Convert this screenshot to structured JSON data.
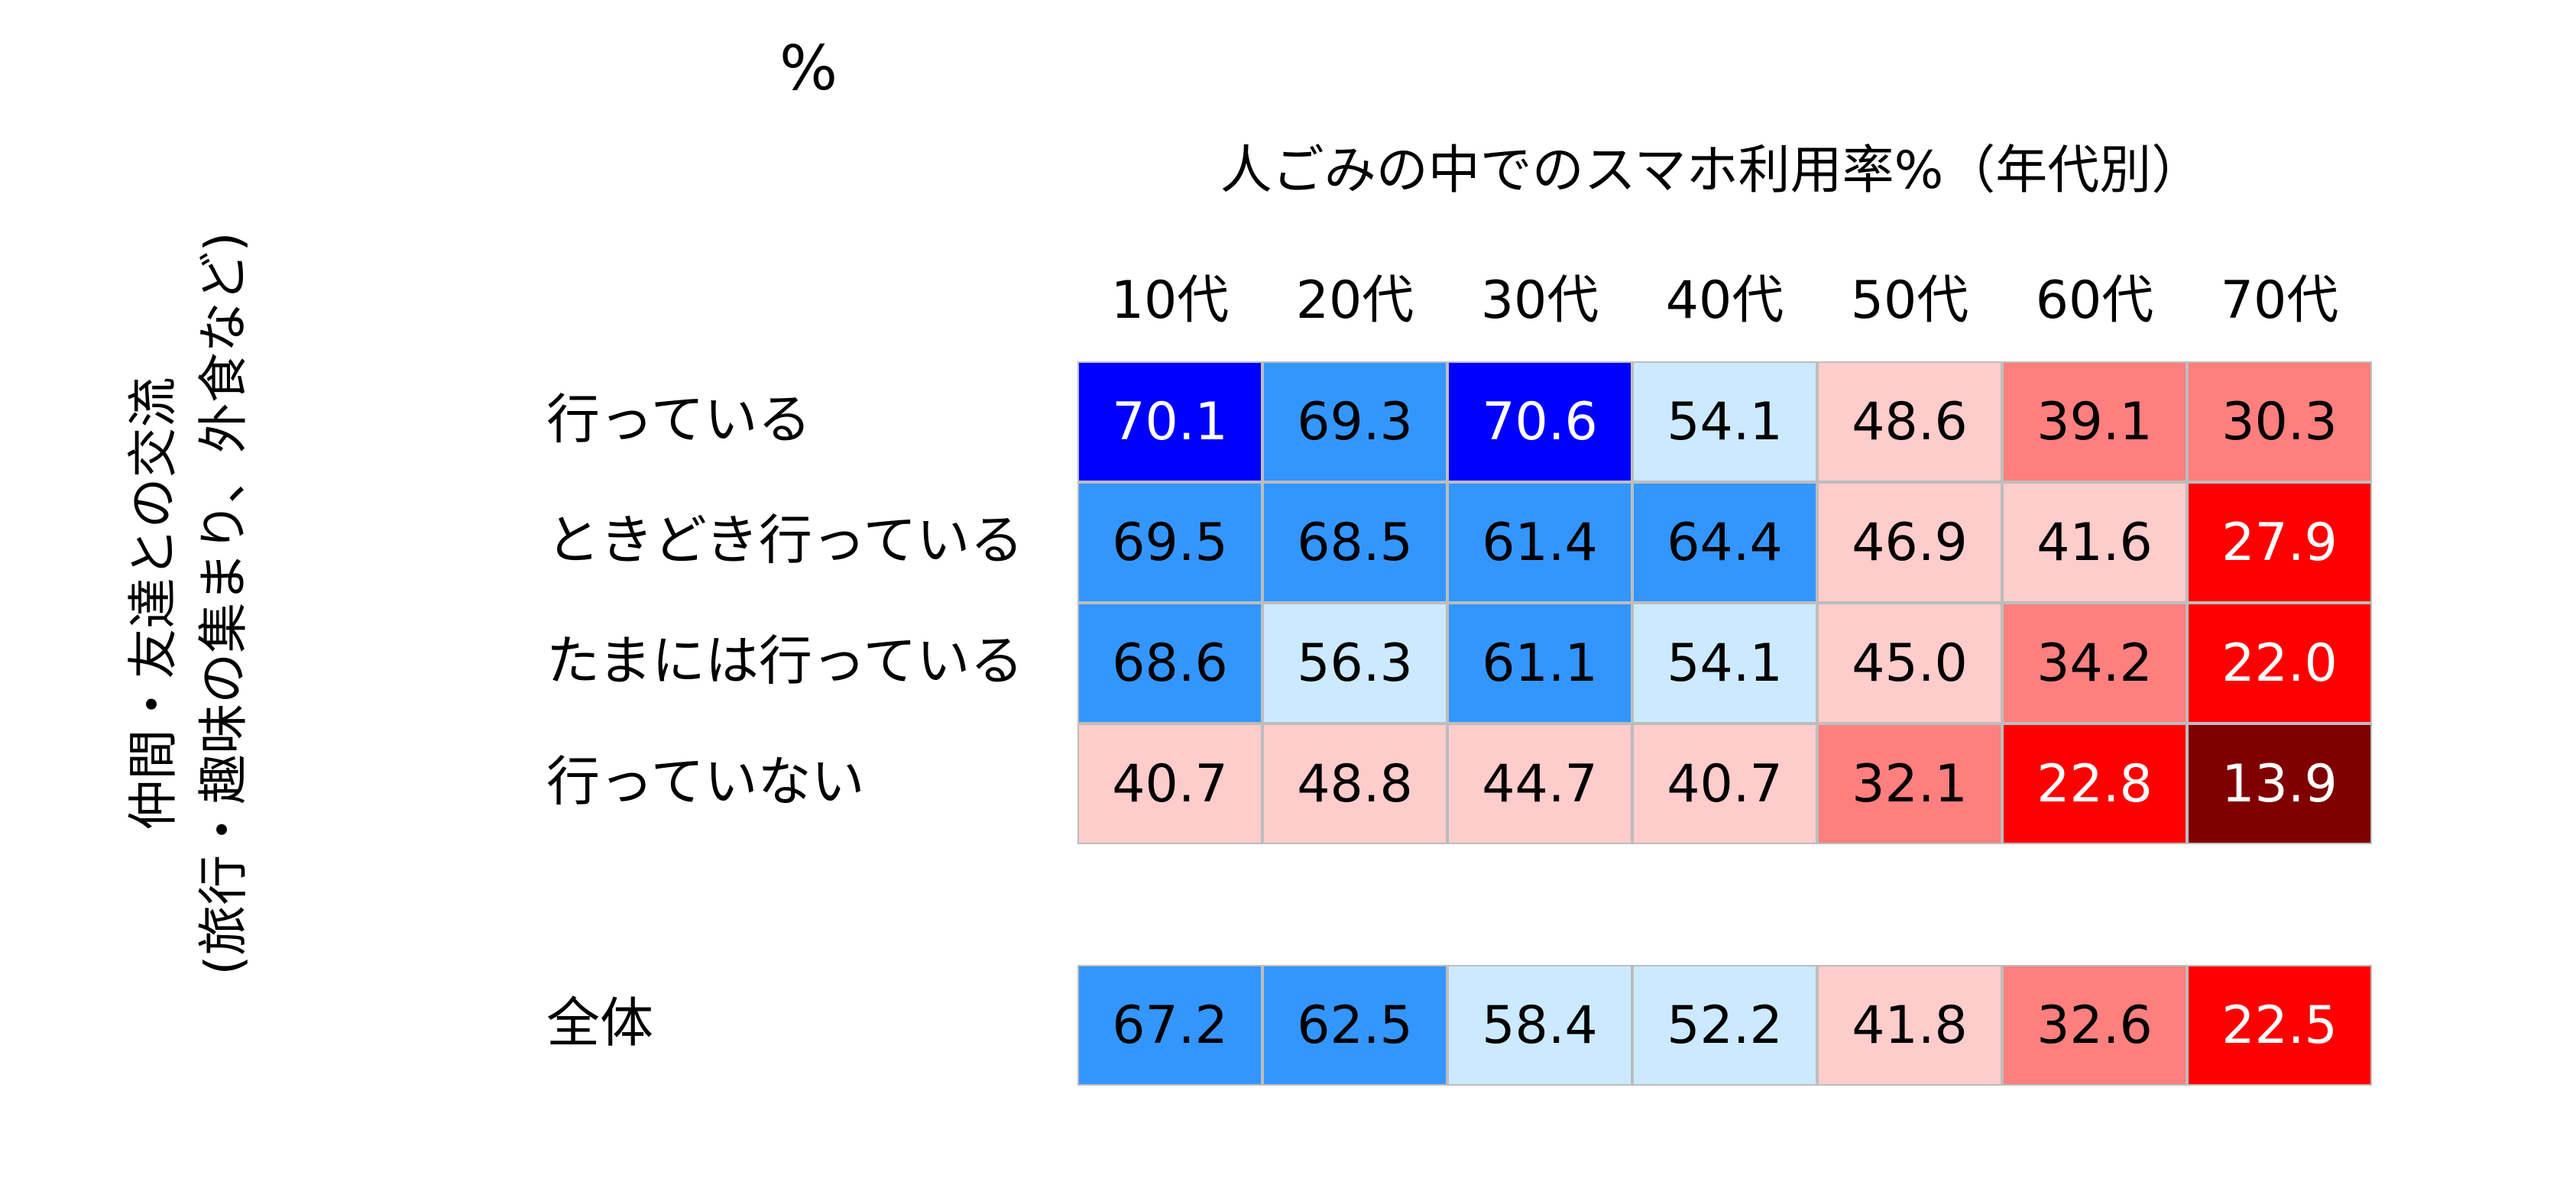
{
  "unit_label": "%",
  "chart_data": {
    "type": "heatmap",
    "title": "人ごみの中でのスマホ利用率%（年代別）",
    "ylabel_lines": [
      "仲間・友達との交流",
      "(旅行・趣味の集まり、外食など)"
    ],
    "columns": [
      "10代",
      "20代",
      "30代",
      "40代",
      "50代",
      "60代",
      "70代"
    ],
    "rows": [
      {
        "label": "行っている",
        "values": [
          "70.1",
          "69.3",
          "70.6",
          "54.1",
          "48.6",
          "39.1",
          "30.3"
        ]
      },
      {
        "label": "ときどき行っている",
        "values": [
          "69.5",
          "68.5",
          "61.4",
          "64.4",
          "46.9",
          "41.6",
          "27.9"
        ]
      },
      {
        "label": "たまには行っている",
        "values": [
          "68.6",
          "56.3",
          "61.1",
          "54.1",
          "45.0",
          "34.2",
          "22.0"
        ]
      },
      {
        "label": "行っていない",
        "values": [
          "40.7",
          "48.8",
          "44.7",
          "40.7",
          "32.1",
          "22.8",
          "13.9"
        ]
      }
    ],
    "total_row": {
      "label": "全体",
      "values": [
        "67.2",
        "62.5",
        "58.4",
        "52.2",
        "41.8",
        "32.6",
        "22.5"
      ]
    },
    "colors": {
      "dark_blue": "#0000ff",
      "mid_blue": "#3396ff",
      "light_blue": "#cceaff",
      "light_pink": "#ffcccc",
      "mid_red": "#ff7f7f",
      "red": "#ff0000",
      "dark_red": "#800000"
    },
    "color_rules": [
      {
        "min": 70,
        "color": "dark_blue",
        "text": "#ffffff"
      },
      {
        "min": 60,
        "color": "mid_blue",
        "text": "#000000"
      },
      {
        "min": 50,
        "color": "light_blue",
        "text": "#000000"
      },
      {
        "min": 40,
        "color": "light_pink",
        "text": "#000000"
      },
      {
        "min": 30,
        "color": "mid_red",
        "text": "#000000"
      },
      {
        "min": 20,
        "color": "red",
        "text": "#ffffff"
      },
      {
        "min": 0,
        "color": "dark_red",
        "text": "#ffffff"
      }
    ]
  }
}
